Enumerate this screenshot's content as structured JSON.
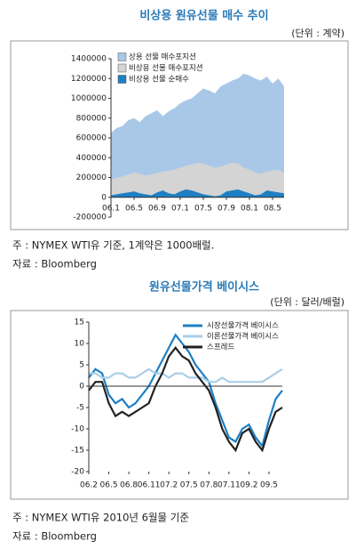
{
  "chart_data": [
    {
      "type": "area",
      "title": "비상용 원유선물 매수 추이",
      "unit": "(단위 : 계약)",
      "notes": [
        "주 : NYMEX WTI유 기준, 1계약은 1000배럴.",
        "자료 : Bloomberg"
      ],
      "categories": [
        "06.1",
        null,
        null,
        null,
        "06.5",
        null,
        null,
        null,
        "06.9",
        null,
        null,
        null,
        "07.1",
        null,
        null,
        null,
        "07.5",
        null,
        null,
        null,
        "07.9",
        null,
        null,
        null,
        "08.1",
        null,
        null,
        null,
        "08.5",
        null,
        null
      ],
      "series": [
        {
          "name": "상용 선물 매수포지션",
          "color": "#a9c8e8",
          "values": [
            650000,
            700000,
            720000,
            780000,
            800000,
            760000,
            820000,
            850000,
            880000,
            820000,
            870000,
            900000,
            950000,
            980000,
            1000000,
            1050000,
            1100000,
            1080000,
            1050000,
            1120000,
            1150000,
            1180000,
            1200000,
            1250000,
            1230000,
            1200000,
            1180000,
            1220000,
            1150000,
            1200000,
            1120000
          ]
        },
        {
          "name": "비상용 선물 매수포지션",
          "color": "#d4d4d4",
          "values": [
            180000,
            200000,
            210000,
            230000,
            250000,
            240000,
            220000,
            230000,
            250000,
            260000,
            270000,
            280000,
            300000,
            320000,
            330000,
            350000,
            340000,
            320000,
            300000,
            310000,
            330000,
            350000,
            340000,
            300000,
            280000,
            250000,
            240000,
            260000,
            270000,
            280000,
            250000
          ]
        },
        {
          "name": "비상용 선물 순매수",
          "color": "#1f7fc4",
          "values": [
            20000,
            30000,
            40000,
            50000,
            60000,
            40000,
            30000,
            20000,
            50000,
            70000,
            40000,
            30000,
            60000,
            80000,
            70000,
            50000,
            30000,
            20000,
            10000,
            20000,
            60000,
            70000,
            80000,
            60000,
            40000,
            20000,
            30000,
            70000,
            60000,
            50000,
            40000
          ]
        }
      ],
      "ylim": [
        -200000,
        1400000
      ],
      "yticks": [
        -200000,
        0,
        200000,
        400000,
        600000,
        800000,
        1000000,
        1200000,
        1400000
      ],
      "legend": "upper left"
    },
    {
      "type": "line",
      "title": "원유선물가격 베이시스",
      "unit": "(단위 : 달러/배럴)",
      "notes": [
        "주 : NYMEX WTI유 2010년 6월물 기준",
        "자료 : Bloomberg"
      ],
      "categories": [
        "06.2",
        null,
        null,
        "06.5",
        null,
        null,
        "06.8",
        null,
        null,
        "06.11",
        null,
        null,
        "07.2",
        null,
        null,
        "07.5",
        null,
        null,
        "07.8",
        null,
        null,
        "07.11",
        null,
        null,
        "09.2",
        null,
        null,
        "09.5",
        null,
        null
      ],
      "series": [
        {
          "name": "시장선물가격 베이시스",
          "color": "#1f7fc4",
          "values": [
            2,
            4,
            3,
            -2,
            -4,
            -3,
            -5,
            -4,
            -2,
            0,
            3,
            6,
            9,
            12,
            10,
            8,
            5,
            3,
            1,
            -4,
            -8,
            -12,
            -13,
            -10,
            -9,
            -12,
            -14,
            -8,
            -3,
            -1
          ]
        },
        {
          "name": "이론선물가격 베이시스",
          "color": "#a9cfe8",
          "values": [
            3,
            3,
            2,
            2,
            3,
            3,
            2,
            2,
            3,
            4,
            3,
            3,
            2,
            3,
            3,
            2,
            2,
            2,
            1,
            1,
            2,
            1,
            1,
            1,
            1,
            1,
            1,
            2,
            3,
            4
          ]
        },
        {
          "name": "스프레드",
          "color": "#222222",
          "values": [
            -1,
            1,
            1,
            -4,
            -7,
            -6,
            -7,
            -6,
            -5,
            -4,
            0,
            3,
            7,
            9,
            7,
            6,
            3,
            1,
            -1,
            -5,
            -10,
            -13,
            -15,
            -11,
            -10,
            -13,
            -15,
            -10,
            -6,
            -5
          ]
        }
      ],
      "ylim": [
        -20,
        15
      ],
      "yticks": [
        -20,
        -15,
        -10,
        -5,
        0,
        5,
        10,
        15
      ],
      "legend": "upper right"
    }
  ]
}
